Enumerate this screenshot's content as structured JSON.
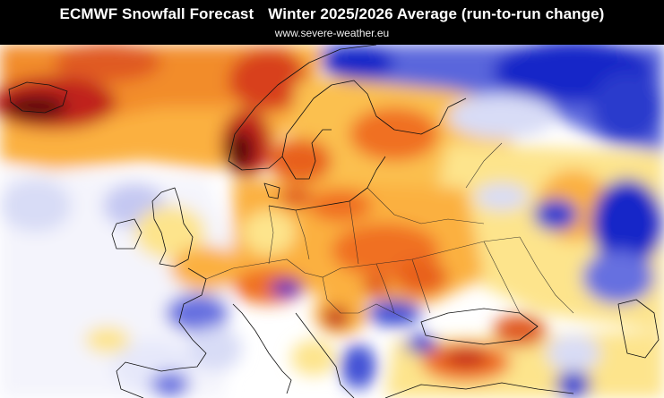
{
  "header": {
    "title_main": "ECMWF Snowfall Forecast",
    "title_period": "Winter 2025/2026 Average (run-to-run change)",
    "website": "www.severe-weather.eu"
  },
  "map": {
    "region": "Europe",
    "colors": {
      "strong_decrease": "#5a0a0a",
      "decrease_high": "#c0201a",
      "decrease_mid": "#f07020",
      "decrease_low": "#fbb040",
      "decrease_slight": "#fde48c",
      "neutral": "#ffffff",
      "increase_slight": "#d8dcf6",
      "increase_mid": "#6670e0",
      "increase_high": "#1426c8",
      "borders": "#000000"
    }
  }
}
